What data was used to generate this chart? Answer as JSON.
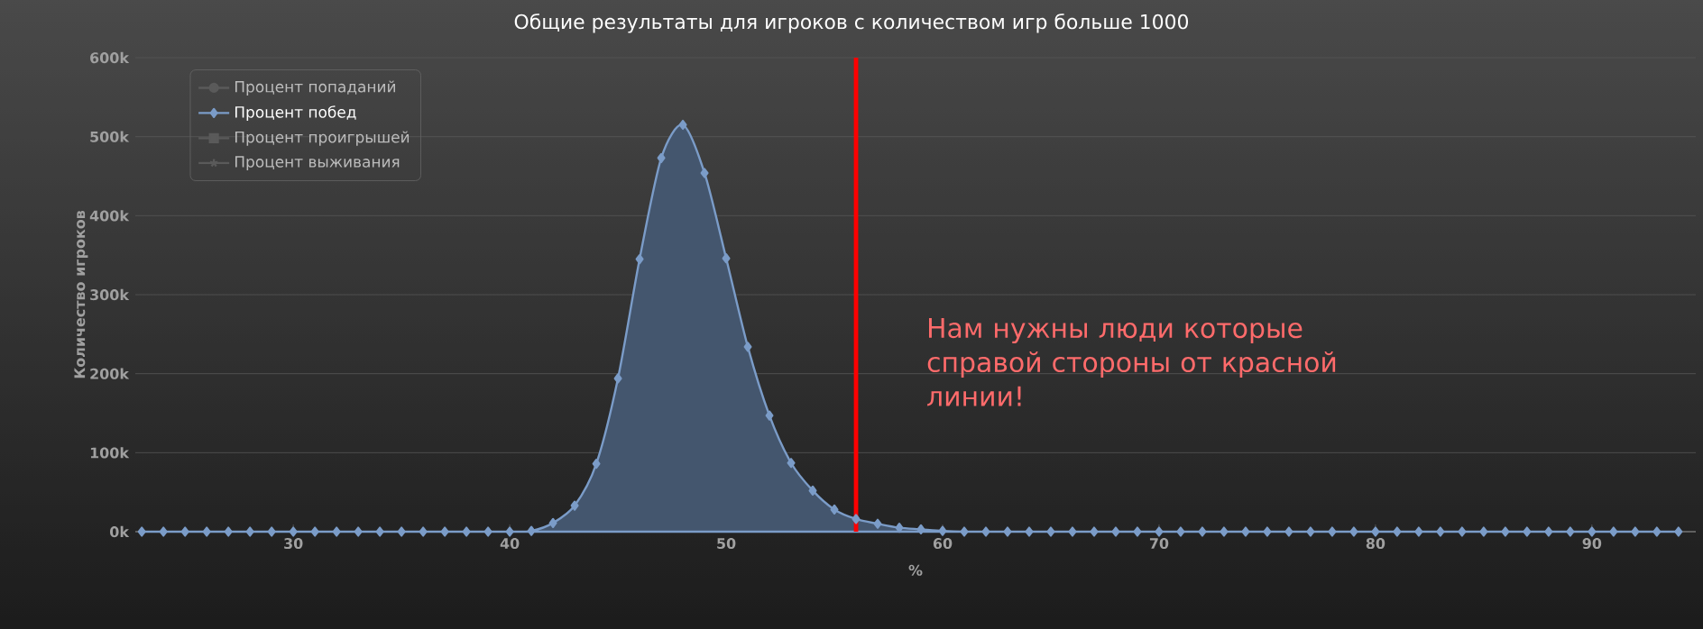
{
  "chart_data": {
    "type": "area",
    "title": "Общие результаты для игроков с количеством игр больше 1000",
    "xlabel": "%",
    "ylabel": "Количество игроков",
    "x": [
      23,
      24,
      25,
      26,
      27,
      28,
      29,
      30,
      31,
      32,
      33,
      34,
      35,
      36,
      37,
      38,
      39,
      40,
      41,
      42,
      43,
      44,
      45,
      46,
      47,
      48,
      49,
      50,
      51,
      52,
      53,
      54,
      55,
      56,
      57,
      58,
      59,
      60,
      61,
      62,
      63,
      64,
      65,
      66,
      67,
      68,
      69,
      70,
      71,
      72,
      73,
      74,
      75,
      76,
      77,
      78,
      79,
      80,
      81,
      82,
      83,
      84,
      85,
      86,
      87,
      88,
      89,
      90,
      91,
      92,
      93,
      94
    ],
    "series": [
      {
        "name": "Процент попаданий",
        "color": "#5a5a5a",
        "marker": "circle",
        "values": [
          null,
          null,
          null,
          null,
          null,
          null,
          null,
          null,
          null,
          null,
          null,
          null,
          null,
          null,
          null,
          null,
          null,
          null,
          null,
          null,
          null,
          null,
          null,
          null,
          null,
          null,
          null,
          null,
          null,
          null,
          null,
          null,
          null,
          null,
          null,
          null,
          null,
          null,
          null,
          null,
          null,
          null,
          null,
          null,
          null,
          null,
          null,
          null,
          null,
          null,
          null,
          null,
          null,
          null,
          null,
          null,
          null,
          null,
          null,
          null,
          null,
          null,
          null,
          null,
          null,
          null,
          null,
          null,
          null,
          null,
          null,
          null
        ]
      },
      {
        "name": "Процент побед",
        "color": "#7b9cc8",
        "marker": "diamond",
        "values": [
          0,
          0,
          0,
          0,
          0,
          0,
          0,
          0,
          0,
          0,
          0,
          0,
          0,
          0,
          0,
          0,
          0,
          0,
          1000,
          11000,
          33000,
          86000,
          194000,
          345000,
          473000,
          515000,
          454000,
          346000,
          234000,
          147000,
          87000,
          52000,
          28000,
          16000,
          10000,
          5000,
          3000,
          1000,
          0,
          0,
          0,
          0,
          0,
          0,
          0,
          0,
          0,
          0,
          0,
          0,
          0,
          0,
          0,
          0,
          0,
          0,
          0,
          0,
          0,
          0,
          0,
          0,
          0,
          0,
          0,
          0,
          0,
          0,
          0,
          0,
          0,
          0
        ]
      },
      {
        "name": "Процент проигрышей",
        "color": "#5a5a5a",
        "marker": "square",
        "values": [
          null,
          null,
          null,
          null,
          null,
          null,
          null,
          null,
          null,
          null,
          null,
          null,
          null,
          null,
          null,
          null,
          null,
          null,
          null,
          null,
          null,
          null,
          null,
          null,
          null,
          null,
          null,
          null,
          null,
          null,
          null,
          null,
          null,
          null,
          null,
          null,
          null,
          null,
          null,
          null,
          null,
          null,
          null,
          null,
          null,
          null,
          null,
          null,
          null,
          null,
          null,
          null,
          null,
          null,
          null,
          null,
          null,
          null,
          null,
          null,
          null,
          null,
          null,
          null,
          null,
          null,
          null,
          null,
          null,
          null,
          null,
          null
        ]
      },
      {
        "name": "Процент выживания",
        "color": "#5a5a5a",
        "marker": "star",
        "values": [
          null,
          null,
          null,
          null,
          null,
          null,
          null,
          null,
          null,
          null,
          null,
          null,
          null,
          null,
          null,
          null,
          null,
          null,
          null,
          null,
          null,
          null,
          null,
          null,
          null,
          null,
          null,
          null,
          null,
          null,
          null,
          null,
          null,
          null,
          null,
          null,
          null,
          null,
          null,
          null,
          null,
          null,
          null,
          null,
          null,
          null,
          null,
          null,
          null,
          null,
          null,
          null,
          null,
          null,
          null,
          null,
          null,
          null,
          null,
          null,
          null,
          null,
          null,
          null,
          null,
          null,
          null,
          null,
          null,
          null,
          null,
          null
        ]
      }
    ],
    "xlim": [
      22.7,
      94.8
    ],
    "xticks": [
      30,
      40,
      50,
      60,
      70,
      80,
      90
    ],
    "ylim": [
      0,
      600000
    ],
    "yticks": [
      {
        "value": 0,
        "label": "0k"
      },
      {
        "value": 100000,
        "label": "100k"
      },
      {
        "value": 200000,
        "label": "200k"
      },
      {
        "value": 300000,
        "label": "300k"
      },
      {
        "value": 400000,
        "label": "400k"
      },
      {
        "value": 500000,
        "label": "500k"
      },
      {
        "value": 600000,
        "label": "600k"
      }
    ],
    "grid": "y",
    "legend": "top left",
    "ref_lines": [
      {
        "axis": "x",
        "value": 56,
        "color": "#ff0000"
      }
    ],
    "annotations": [
      "Нам нужны люди которые справой стороны от красной линии!"
    ]
  }
}
